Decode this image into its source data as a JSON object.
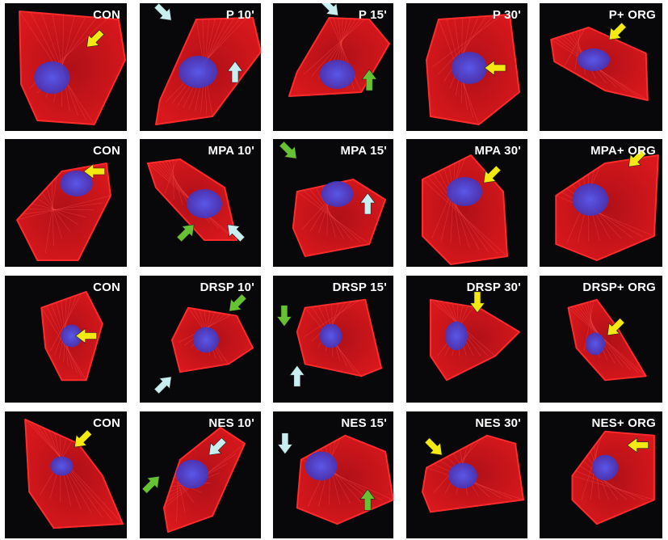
{
  "colors": {
    "actin": "#d8181c",
    "nucleus": "#3a38c8",
    "background": "#08080b",
    "arrow_yellow": "#f4ea12",
    "arrow_cyan": "#c8eef0",
    "arrow_green": "#66c233"
  },
  "rows": [
    {
      "panels": [
        {
          "label": "CON",
          "arrows": [
            {
              "color": "yellow",
              "dir": "down-left"
            }
          ]
        },
        {
          "label": "P 10'",
          "arrows": [
            {
              "color": "cyan",
              "dir": "down-right"
            },
            {
              "color": "cyan",
              "dir": "up"
            }
          ]
        },
        {
          "label": "P 15'",
          "arrows": [
            {
              "color": "cyan",
              "dir": "down-right"
            },
            {
              "color": "green",
              "dir": "up"
            }
          ]
        },
        {
          "label": "P 30'",
          "arrows": [
            {
              "color": "yellow",
              "dir": "left"
            }
          ]
        },
        {
          "label": "P+ ORG",
          "arrows": [
            {
              "color": "yellow",
              "dir": "down-left"
            }
          ]
        }
      ]
    },
    {
      "panels": [
        {
          "label": "CON",
          "arrows": [
            {
              "color": "yellow",
              "dir": "left"
            }
          ]
        },
        {
          "label": "MPA 10'",
          "arrows": [
            {
              "color": "green",
              "dir": "up-right"
            },
            {
              "color": "cyan",
              "dir": "up-left"
            }
          ]
        },
        {
          "label": "MPA 15'",
          "arrows": [
            {
              "color": "green",
              "dir": "down-right"
            },
            {
              "color": "cyan",
              "dir": "up"
            }
          ]
        },
        {
          "label": "MPA 30'",
          "arrows": [
            {
              "color": "yellow",
              "dir": "down-left"
            }
          ]
        },
        {
          "label": "MPA+ ORG",
          "arrows": [
            {
              "color": "yellow",
              "dir": "down-left"
            }
          ]
        }
      ]
    },
    {
      "panels": [
        {
          "label": "CON",
          "arrows": [
            {
              "color": "yellow",
              "dir": "left"
            }
          ]
        },
        {
          "label": "DRSP 10'",
          "arrows": [
            {
              "color": "green",
              "dir": "down-left"
            },
            {
              "color": "cyan",
              "dir": "up-right"
            }
          ]
        },
        {
          "label": "DRSP 15'",
          "arrows": [
            {
              "color": "green",
              "dir": "down"
            },
            {
              "color": "cyan",
              "dir": "up"
            }
          ]
        },
        {
          "label": "DRSP 30'",
          "arrows": [
            {
              "color": "yellow",
              "dir": "down"
            }
          ]
        },
        {
          "label": "DRSP+ ORG",
          "arrows": [
            {
              "color": "yellow",
              "dir": "down-left"
            }
          ]
        }
      ]
    },
    {
      "panels": [
        {
          "label": "CON",
          "arrows": [
            {
              "color": "yellow",
              "dir": "down-left"
            }
          ]
        },
        {
          "label": "NES 10'",
          "arrows": [
            {
              "color": "cyan",
              "dir": "down-left"
            },
            {
              "color": "green",
              "dir": "up-right"
            }
          ]
        },
        {
          "label": "NES 15'",
          "arrows": [
            {
              "color": "cyan",
              "dir": "down"
            },
            {
              "color": "green",
              "dir": "up"
            }
          ]
        },
        {
          "label": "NES 30'",
          "arrows": [
            {
              "color": "yellow",
              "dir": "down-right"
            }
          ]
        },
        {
          "label": "NES+ ORG",
          "arrows": [
            {
              "color": "yellow",
              "dir": "left"
            }
          ]
        }
      ]
    }
  ]
}
